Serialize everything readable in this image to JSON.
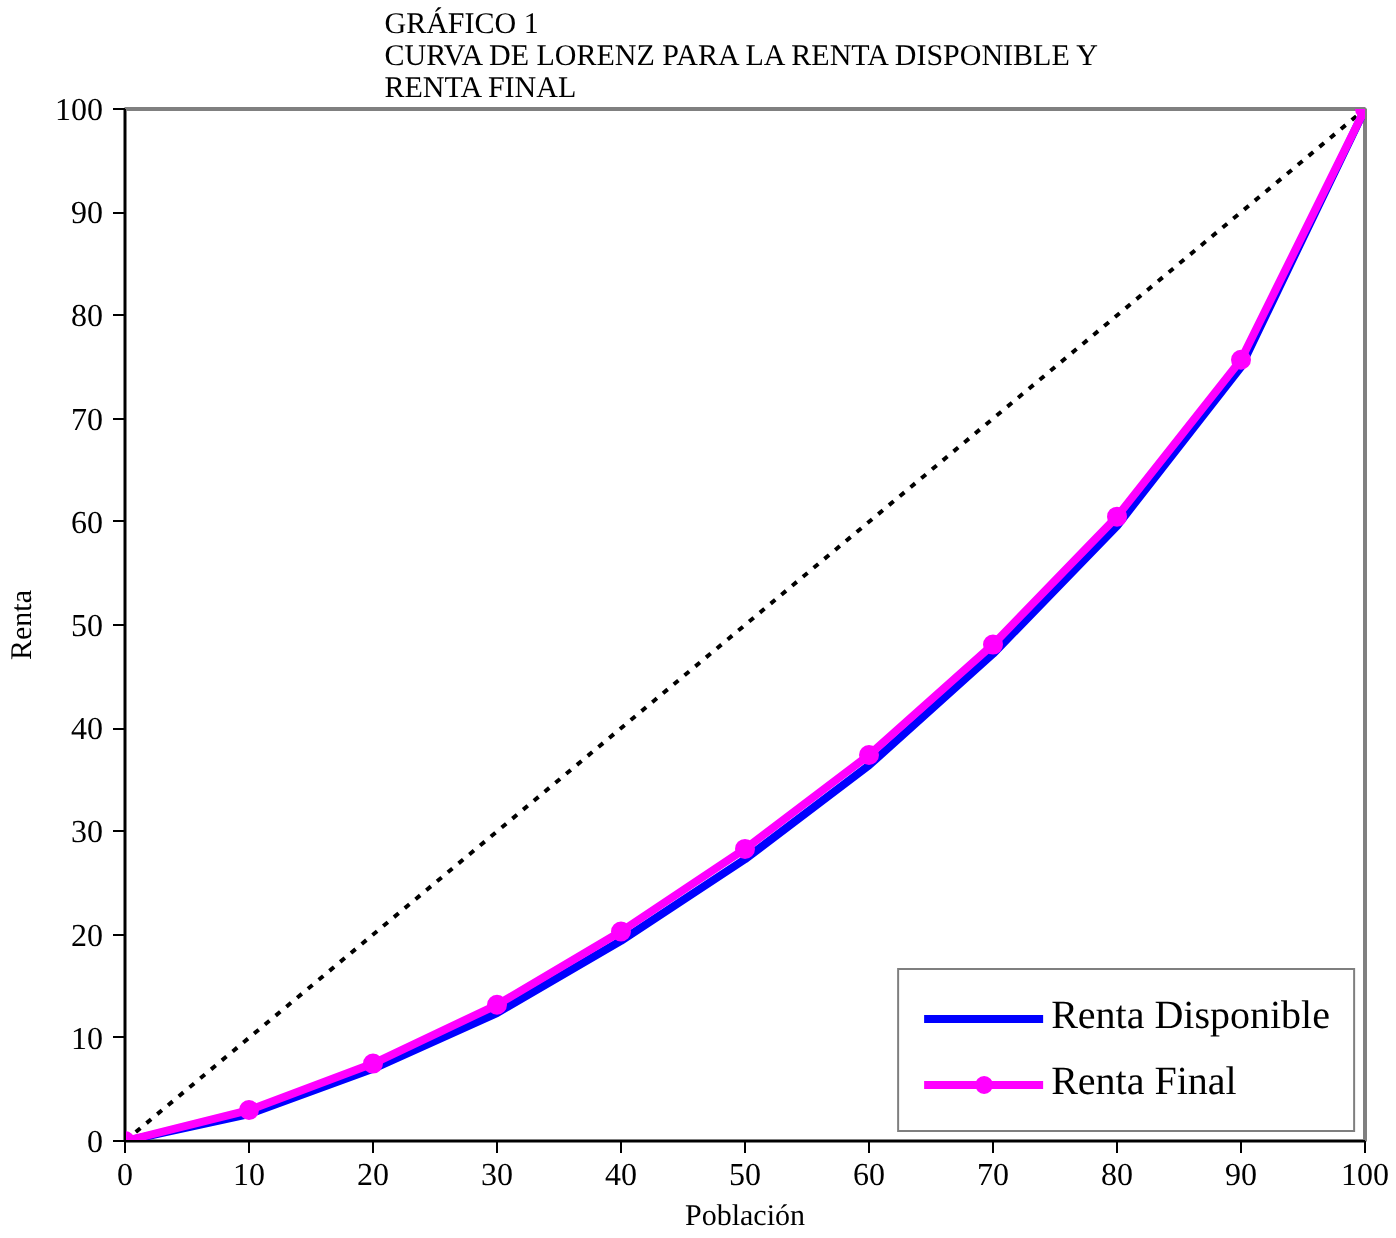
{
  "chart_data": {
    "type": "line",
    "title": "GRÁFICO 1\nCURVA DE LORENZ PARA LA RENTA DISPONIBLE Y\nRENTA FINAL",
    "xlabel": "Población",
    "ylabel": "Renta",
    "x": [
      0,
      10,
      20,
      30,
      40,
      50,
      60,
      70,
      80,
      90,
      100
    ],
    "xlim": [
      0,
      100
    ],
    "ylim": [
      0,
      100
    ],
    "xticks": [
      0,
      10,
      20,
      30,
      40,
      50,
      60,
      70,
      80,
      90,
      100
    ],
    "yticks": [
      0,
      10,
      20,
      30,
      40,
      50,
      60,
      70,
      80,
      90,
      100
    ],
    "grid": false,
    "legend": "bottom right",
    "series": [
      {
        "x": [
          0,
          100
        ],
        "values": [
          0,
          100
        ],
        "color": "#000000",
        "line_style": "dotted",
        "marker": "none"
      },
      {
        "name": "Renta Disponible",
        "color": "#0000ff",
        "values": [
          0,
          2.6,
          7.0,
          12.4,
          19.4,
          27.3,
          36.4,
          47.2,
          59.6,
          75.0,
          100
        ],
        "line_style": "solid",
        "marker": "none"
      },
      {
        "name": "Renta Final",
        "color": "#ff00ff",
        "values": [
          0,
          3.0,
          7.5,
          13.2,
          20.3,
          28.3,
          37.4,
          48.1,
          60.5,
          75.7,
          100
        ],
        "line_style": "solid",
        "marker": "circle"
      }
    ]
  }
}
